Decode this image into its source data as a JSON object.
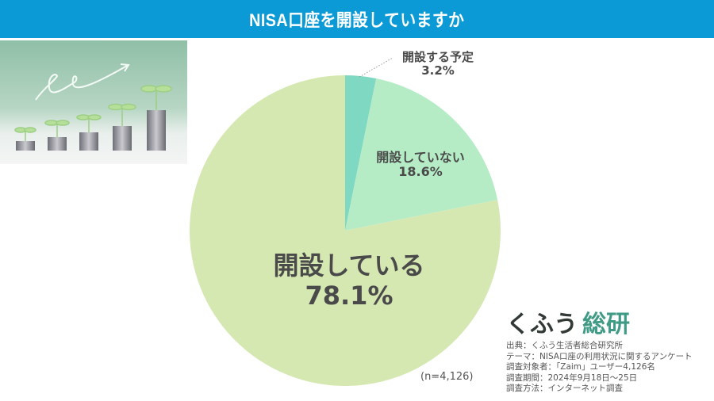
{
  "header": {
    "title": "NISA口座を開設していますか"
  },
  "photo": {
    "icon": "coins-growing-sprouts-photo"
  },
  "chart_data": {
    "type": "pie",
    "title": "NISA口座を開設していますか",
    "categories": [
      "開設する予定",
      "開設していない",
      "開設している"
    ],
    "values": [
      3.2,
      18.6,
      78.1
    ],
    "colors": [
      "#7fd8c2",
      "#b5ecc6",
      "#d6e8b2"
    ],
    "labels": [
      {
        "name": "開設する予定",
        "value": "3.2%"
      },
      {
        "name": "開設していない",
        "value": "18.6%"
      },
      {
        "name": "開設している",
        "value": "78.1%"
      }
    ],
    "sample_size": "(n=4,126)",
    "start_angle": "12 o'clock, clockwise"
  },
  "brand": {
    "part1": "くふう",
    "part2": "総研",
    "color_accent": "#3f9a86"
  },
  "source": {
    "lines": [
      "出典：くふう生活者総合研究所",
      "テーマ：NISA口座の利用状況に関するアンケート",
      "調査対象者：「Zaim」ユーザー4,126名",
      "調査期間：2024年9月18日～25日",
      "調査方法：インターネット調査"
    ]
  }
}
